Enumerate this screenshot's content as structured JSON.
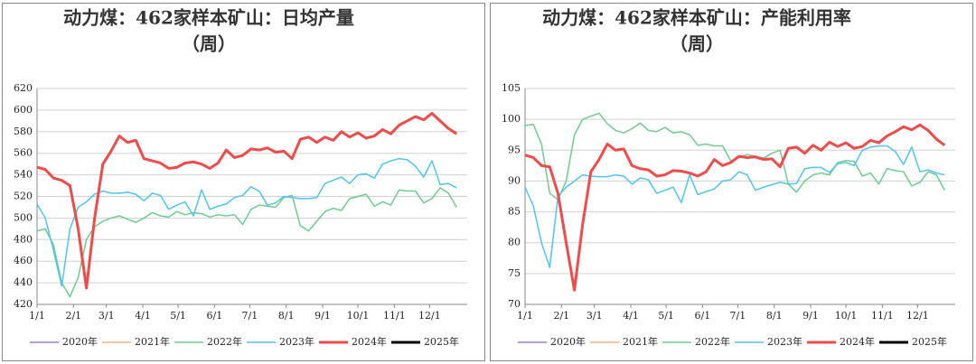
{
  "chart_data": [
    {
      "type": "line",
      "title": "动力煤：462家样本矿山：日均产量",
      "subtitle": "（周）",
      "x": [
        0,
        7,
        14,
        21,
        28,
        35,
        42,
        49,
        56,
        63,
        70,
        77,
        84,
        91,
        98,
        105,
        112,
        119,
        126,
        133,
        140,
        147,
        154,
        161,
        168,
        175,
        182,
        189,
        196,
        203,
        210,
        217,
        224,
        231,
        238,
        245,
        252,
        259,
        266,
        273,
        280,
        287,
        294,
        301,
        308,
        315,
        322,
        329,
        336,
        343,
        350,
        357
      ],
      "xlim": [
        0,
        366
      ],
      "xticks": [
        {
          "value": 0,
          "label": "1/1"
        },
        {
          "value": 31,
          "label": "2/1"
        },
        {
          "value": 59,
          "label": "3/1"
        },
        {
          "value": 90,
          "label": "4/1"
        },
        {
          "value": 120,
          "label": "5/1"
        },
        {
          "value": 151,
          "label": "6/1"
        },
        {
          "value": 181,
          "label": "7/1"
        },
        {
          "value": 212,
          "label": "8/1"
        },
        {
          "value": 243,
          "label": "9/1"
        },
        {
          "value": 273,
          "label": "10/1"
        },
        {
          "value": 304,
          "label": "11/1"
        },
        {
          "value": 334,
          "label": "12/1"
        }
      ],
      "ylim": [
        420,
        620
      ],
      "yticks": [
        420,
        440,
        460,
        480,
        500,
        520,
        540,
        560,
        580,
        600,
        620
      ],
      "grid": true,
      "legend": "bottom",
      "series": [
        {
          "name": "2020年",
          "color": "#a07fd4",
          "width": 1.5,
          "values": [
            null,
            null,
            null,
            null,
            null,
            null,
            null,
            null,
            null,
            null,
            null,
            null,
            null,
            null,
            null,
            null,
            null,
            null,
            null,
            null,
            null,
            null,
            null,
            null,
            null,
            null,
            null,
            null,
            null,
            null,
            null,
            null,
            null,
            null,
            null,
            null,
            null,
            null,
            null,
            null,
            null,
            null,
            null,
            null,
            null,
            null,
            null,
            null,
            null,
            null,
            null,
            null
          ]
        },
        {
          "name": "2021年",
          "color": "#f5b183",
          "width": 1.5,
          "values": [
            null,
            null,
            null,
            null,
            null,
            null,
            null,
            null,
            null,
            null,
            null,
            null,
            null,
            null,
            null,
            null,
            null,
            null,
            null,
            null,
            null,
            null,
            null,
            null,
            null,
            null,
            null,
            null,
            null,
            null,
            null,
            null,
            null,
            null,
            null,
            null,
            null,
            null,
            null,
            null,
            null,
            null,
            null,
            null,
            null,
            null,
            null,
            null,
            null,
            null,
            null,
            null
          ]
        },
        {
          "name": "2022年",
          "color": "#6fcb8f",
          "width": 1.5,
          "values": [
            488,
            490,
            475,
            440,
            427,
            445,
            480,
            492,
            497,
            500,
            502,
            499,
            496,
            500,
            505,
            502,
            501,
            506,
            503,
            505,
            504,
            501,
            503,
            502,
            503,
            494,
            508,
            512,
            511,
            510,
            519,
            521,
            493,
            488,
            497,
            506,
            509,
            507,
            518,
            520,
            522,
            511,
            515,
            512,
            526,
            525,
            525,
            514,
            518,
            528,
            523,
            510
          ]
        },
        {
          "name": "2023年",
          "color": "#4fc4ec",
          "width": 1.5,
          "values": [
            513,
            500,
            470,
            437,
            490,
            510,
            515,
            522,
            525,
            523,
            523,
            524,
            522,
            516,
            523,
            521,
            508,
            512,
            515,
            502,
            526,
            508,
            511,
            513,
            519,
            521,
            529,
            525,
            512,
            514,
            520,
            519,
            518,
            518,
            519,
            532,
            535,
            538,
            532,
            540,
            541,
            537,
            550,
            553,
            555,
            554,
            548,
            538,
            553,
            531,
            532,
            528
          ]
        },
        {
          "name": "2024年",
          "color": "#ef4b4b",
          "width": 3,
          "values": [
            547,
            545,
            537,
            535,
            530,
            490,
            435,
            500,
            550,
            562,
            576,
            570,
            572,
            555,
            553,
            551,
            546,
            547,
            551,
            552,
            550,
            546,
            551,
            563,
            556,
            558,
            564,
            563,
            565,
            561,
            562,
            555,
            573,
            575,
            570,
            575,
            572,
            580,
            575,
            579,
            574,
            576,
            582,
            578,
            586,
            590,
            594,
            591,
            597,
            590,
            583,
            578
          ]
        },
        {
          "name": "2025年",
          "color": "#000000",
          "width": 3,
          "values": [
            null,
            null,
            null,
            null,
            null,
            null,
            null,
            null,
            null,
            null,
            null,
            null,
            null,
            null,
            null,
            null,
            null,
            null,
            null,
            null,
            null,
            null,
            null,
            null,
            null,
            null,
            null,
            null,
            null,
            null,
            null,
            null,
            null,
            null,
            null,
            null,
            null,
            null,
            null,
            null,
            null,
            null,
            null,
            null,
            null,
            null,
            null,
            null,
            null,
            null,
            null,
            null
          ]
        }
      ]
    },
    {
      "type": "line",
      "title": "动力煤：462家样本矿山：产能利用率",
      "subtitle": "（周）",
      "x": [
        0,
        7,
        14,
        21,
        28,
        35,
        42,
        49,
        56,
        63,
        70,
        77,
        84,
        91,
        98,
        105,
        112,
        119,
        126,
        133,
        140,
        147,
        154,
        161,
        168,
        175,
        182,
        189,
        196,
        203,
        210,
        217,
        224,
        231,
        238,
        245,
        252,
        259,
        266,
        273,
        280,
        287,
        294,
        301,
        308,
        315,
        322,
        329,
        336,
        343,
        350,
        357
      ],
      "xlim": [
        0,
        366
      ],
      "xticks": [
        {
          "value": 0,
          "label": "1/1"
        },
        {
          "value": 31,
          "label": "2/1"
        },
        {
          "value": 59,
          "label": "3/1"
        },
        {
          "value": 90,
          "label": "4/1"
        },
        {
          "value": 120,
          "label": "5/1"
        },
        {
          "value": 151,
          "label": "6/1"
        },
        {
          "value": 181,
          "label": "7/1"
        },
        {
          "value": 212,
          "label": "8/1"
        },
        {
          "value": 243,
          "label": "9/1"
        },
        {
          "value": 273,
          "label": "10/1"
        },
        {
          "value": 304,
          "label": "11/1"
        },
        {
          "value": 334,
          "label": "12/1"
        }
      ],
      "ylim": [
        70,
        105
      ],
      "yticks": [
        70,
        75,
        80,
        85,
        90,
        95,
        100,
        105
      ],
      "grid": true,
      "legend": "bottom",
      "series": [
        {
          "name": "2020年",
          "color": "#a07fd4",
          "width": 1.5,
          "values": [
            null,
            null,
            null,
            null,
            null,
            null,
            null,
            null,
            null,
            null,
            null,
            null,
            null,
            null,
            null,
            null,
            null,
            null,
            null,
            null,
            null,
            null,
            null,
            null,
            null,
            null,
            null,
            null,
            null,
            null,
            null,
            null,
            null,
            null,
            null,
            null,
            null,
            null,
            null,
            null,
            null,
            null,
            null,
            null,
            null,
            null,
            null,
            null,
            null,
            null,
            null,
            null
          ]
        },
        {
          "name": "2021年",
          "color": "#f5b183",
          "width": 1.5,
          "values": [
            null,
            null,
            null,
            null,
            null,
            null,
            null,
            null,
            null,
            null,
            null,
            null,
            null,
            null,
            null,
            null,
            null,
            null,
            null,
            null,
            null,
            null,
            null,
            null,
            null,
            null,
            null,
            null,
            null,
            null,
            null,
            null,
            null,
            null,
            null,
            null,
            null,
            null,
            null,
            null,
            null,
            null,
            null,
            null,
            null,
            null,
            null,
            null,
            null,
            null,
            null,
            null
          ]
        },
        {
          "name": "2022年",
          "color": "#6fcb8f",
          "width": 1.5,
          "values": [
            99,
            99.2,
            96,
            88,
            87,
            90,
            97.5,
            100,
            100.5,
            101,
            99.3,
            98.2,
            97.8,
            98.5,
            99.4,
            98.2,
            98,
            98.7,
            97.8,
            98,
            97.5,
            95.8,
            96,
            95.7,
            95.7,
            93.3,
            93.8,
            94.3,
            94,
            93.7,
            94.5,
            95,
            89.5,
            88.2,
            90,
            91,
            91.3,
            91,
            93,
            93.3,
            93.2,
            90.8,
            91.3,
            89.5,
            92,
            91.7,
            91.5,
            89.2,
            89.8,
            91.5,
            91,
            88.5
          ]
        },
        {
          "name": "2023年",
          "color": "#4fc4ec",
          "width": 1.5,
          "values": [
            89,
            86,
            80,
            76,
            87.5,
            89,
            90,
            91,
            90.8,
            90.7,
            90.7,
            91,
            90.8,
            89.5,
            90.5,
            90.2,
            88,
            88.5,
            89,
            86.5,
            91,
            87.8,
            88.3,
            88.7,
            90,
            90.2,
            91.5,
            91,
            88.5,
            89,
            89.4,
            89.8,
            89.5,
            89.6,
            92,
            92.2,
            92.2,
            91.4,
            92.8,
            93,
            92.5,
            95,
            95.5,
            95.7,
            95.7,
            94.8,
            92.7,
            95.5,
            91.5,
            91.8,
            91.3,
            91
          ]
        },
        {
          "name": "2024年",
          "color": "#ef4b4b",
          "width": 3,
          "values": [
            94.2,
            93.8,
            92.5,
            92.3,
            88,
            80,
            72.3,
            83,
            91.5,
            93.5,
            96,
            95,
            95.2,
            92.5,
            92,
            91.8,
            90.8,
            91,
            91.7,
            91.6,
            91.3,
            90.8,
            91.5,
            93.5,
            92.5,
            93,
            94,
            93.8,
            93.9,
            93.5,
            93.6,
            92.3,
            95.3,
            95.5,
            94.5,
            95.8,
            95,
            96.3,
            95.6,
            96.2,
            95.3,
            95.6,
            96.6,
            96.2,
            97.3,
            98,
            98.8,
            98.3,
            99.1,
            98.2,
            96.8,
            95.8
          ]
        },
        {
          "name": "2025年",
          "color": "#000000",
          "width": 3,
          "values": [
            null,
            null,
            null,
            null,
            null,
            null,
            null,
            null,
            null,
            null,
            null,
            null,
            null,
            null,
            null,
            null,
            null,
            null,
            null,
            null,
            null,
            null,
            null,
            null,
            null,
            null,
            null,
            null,
            null,
            null,
            null,
            null,
            null,
            null,
            null,
            null,
            null,
            null,
            null,
            null,
            null,
            null,
            null,
            null,
            null,
            null,
            null,
            null,
            null,
            null,
            null,
            null
          ]
        }
      ]
    }
  ]
}
